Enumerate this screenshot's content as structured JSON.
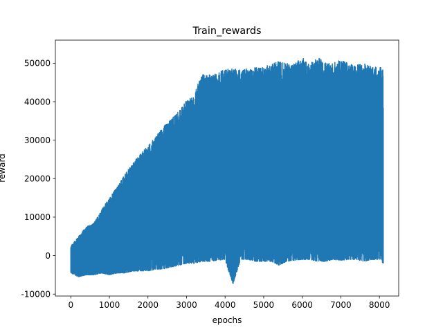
{
  "chart_data": {
    "type": "line",
    "title": "Train_rewards",
    "xlabel": "epochs",
    "ylabel": "reward",
    "xlim": [
      -400,
      8500
    ],
    "ylim": [
      -10500,
      56000
    ],
    "xticks": [
      0,
      1000,
      2000,
      3000,
      4000,
      5000,
      6000,
      7000,
      8000
    ],
    "yticks": [
      -10000,
      0,
      10000,
      20000,
      30000,
      40000,
      50000
    ],
    "grid": false,
    "legend": "none",
    "series": [
      {
        "color": "#1f77b4",
        "x_range": [
          0,
          8100
        ],
        "upper_envelope": {
          "x": [
            0,
            200,
            400,
            600,
            800,
            1000,
            1200,
            1400,
            1600,
            1800,
            2000,
            2200,
            2400,
            2600,
            2800,
            3000,
            3200,
            3300,
            3400,
            3600,
            3800,
            4000,
            4200,
            4400,
            4600,
            4800,
            5000,
            5200,
            5400,
            5600,
            5800,
            6000,
            6200,
            6400,
            6600,
            6800,
            7000,
            7200,
            7400,
            7600,
            7800,
            8000,
            8100
          ],
          "y": [
            2500,
            5000,
            7500,
            8500,
            12000,
            15000,
            18000,
            21000,
            24000,
            26500,
            28500,
            31000,
            33500,
            35500,
            37500,
            40500,
            41500,
            45000,
            47000,
            47000,
            47500,
            48500,
            48500,
            48500,
            48500,
            49000,
            49000,
            50000,
            50500,
            50000,
            50000,
            51500,
            50000,
            51500,
            50500,
            50000,
            51000,
            50000,
            49500,
            50000,
            49000,
            49000,
            49000
          ]
        },
        "lower_envelope": {
          "x": [
            0,
            200,
            400,
            600,
            800,
            1000,
            1200,
            1400,
            1600,
            1800,
            2000,
            2200,
            2400,
            2600,
            2800,
            3000,
            3200,
            3400,
            3600,
            3800,
            4000,
            4200,
            4400,
            4600,
            4800,
            5000,
            5200,
            5400,
            5600,
            5800,
            6000,
            6200,
            6400,
            6600,
            6800,
            7000,
            7200,
            7400,
            7600,
            7800,
            8000,
            8100
          ],
          "y": [
            -4500,
            -5500,
            -5000,
            -5000,
            -4500,
            -5000,
            -4500,
            -4500,
            -4000,
            -4000,
            -4000,
            -3500,
            -3500,
            -3000,
            -2500,
            -2000,
            -2000,
            -1500,
            -1500,
            -1200,
            -1000,
            -7500,
            -1000,
            -1000,
            -1500,
            -1500,
            -1500,
            -2500,
            -1500,
            -1200,
            -1000,
            -1000,
            -1500,
            -1500,
            -1000,
            -1200,
            -1000,
            -1000,
            -1500,
            -1000,
            -1000,
            -2000
          ]
        }
      }
    ]
  }
}
